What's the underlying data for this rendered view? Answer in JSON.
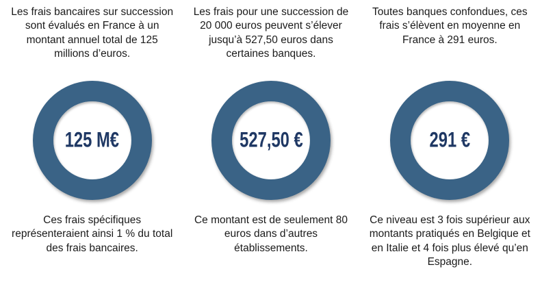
{
  "colors": {
    "ring": "#3A6386",
    "value_text": "#1F3864",
    "body_text": "#1a1a1a",
    "background": "#ffffff"
  },
  "columns": [
    {
      "top_text": "Les frais bancaires sur succession sont évalués en France à un montant annuel total de 125 millions d’euros.",
      "value": "125 M€",
      "bottom_text": "Ces frais spécifiques représenteraient ainsi 1 % du total des frais bancaires."
    },
    {
      "top_text": "Les frais pour une succession de 20 000 euros peuvent s’élever jusqu’à 527,50 euros dans certaines banques.",
      "value": "527,50 €",
      "bottom_text": "Ce montant est de seulement 80 euros dans d’autres établissements."
    },
    {
      "top_text": "Toutes banques confondues, ces frais s’élèvent en moyenne en France à 291 euros.",
      "value": "291 €",
      "bottom_text": "Ce niveau est 3 fois supérieur aux montants pratiqués en Belgique et en Italie et 4 fois plus élevé qu’en Espagne."
    }
  ]
}
